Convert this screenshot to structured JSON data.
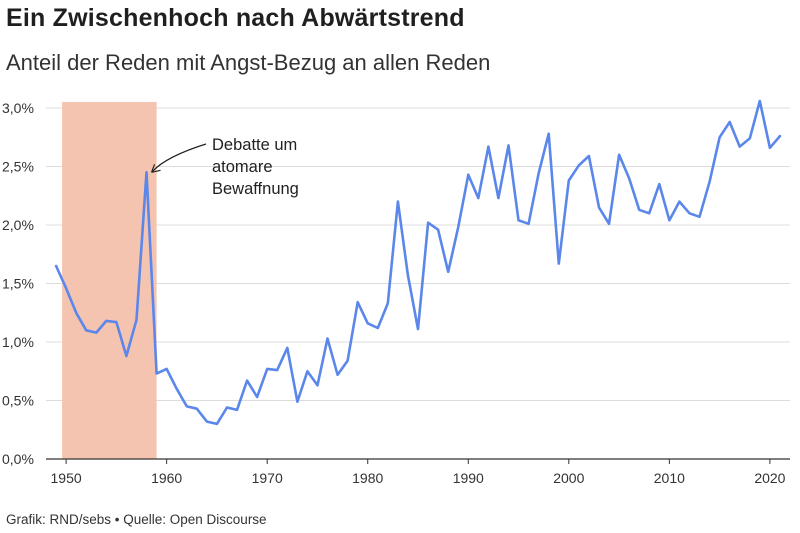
{
  "header": {
    "title": "Ein Zwischenhoch nach Abwärtstrend",
    "subtitle": "Anteil der Reden mit Angst-Bezug an allen Reden"
  },
  "footer": {
    "credit": "Grafik: RND/sebs • Quelle: Open Discourse"
  },
  "colors": {
    "line": "#5b87ea",
    "highlight": "#f4c4b0",
    "grid": "#dcdcdc",
    "axis": "#333333"
  },
  "chart_data": {
    "type": "line",
    "title": "Ein Zwischenhoch nach Abwärtstrend",
    "subtitle": "Anteil der Reden mit Angst-Bezug an allen Reden",
    "xlabel": "",
    "ylabel": "",
    "xlim": [
      1948,
      2022
    ],
    "ylim": [
      0,
      3.0
    ],
    "x_ticks": [
      1950,
      1960,
      1970,
      1980,
      1990,
      2000,
      2010,
      2020
    ],
    "y_ticks": [
      {
        "value": 0,
        "label": "0,0%"
      },
      {
        "value": 0.5,
        "label": "0,5%"
      },
      {
        "value": 1.0,
        "label": "1,0%"
      },
      {
        "value": 1.5,
        "label": "1,5%"
      },
      {
        "value": 2.0,
        "label": "2,0%"
      },
      {
        "value": 2.5,
        "label": "2,5%"
      },
      {
        "value": 3.0,
        "label": "3,0%"
      }
    ],
    "grid": true,
    "highlight_range": [
      1949.6,
      1959.0
    ],
    "annotation": {
      "lines": [
        "Debatte um",
        "atomare",
        "Bewaffnung"
      ],
      "x": 1958,
      "y": 2.45
    },
    "series": [
      {
        "x": [
          1949,
          1950,
          1951,
          1952,
          1953,
          1954,
          1955,
          1956,
          1957,
          1958,
          1959,
          1960,
          1961,
          1962,
          1963,
          1964,
          1965,
          1966,
          1967,
          1968,
          1969,
          1970,
          1971,
          1972,
          1973,
          1974,
          1975,
          1976,
          1977,
          1978,
          1979,
          1980,
          1981,
          1982,
          1983,
          1984,
          1985,
          1986,
          1987,
          1988,
          1989,
          1990,
          1991,
          1992,
          1993,
          1994,
          1995,
          1996,
          1997,
          1998,
          1999,
          2000,
          2001,
          2002,
          2003,
          2004,
          2005,
          2006,
          2007,
          2008,
          2009,
          2010,
          2011,
          2012,
          2013,
          2014,
          2015,
          2016,
          2017,
          2018,
          2019,
          2020,
          2021
        ],
        "values": [
          1.65,
          1.46,
          1.25,
          1.1,
          1.08,
          1.18,
          1.17,
          0.88,
          1.19,
          2.45,
          0.73,
          0.77,
          0.6,
          0.45,
          0.43,
          0.32,
          0.3,
          0.44,
          0.42,
          0.67,
          0.53,
          0.77,
          0.76,
          0.95,
          0.49,
          0.75,
          0.63,
          1.03,
          0.72,
          0.84,
          1.34,
          1.16,
          1.12,
          1.33,
          2.2,
          1.57,
          1.11,
          2.02,
          1.96,
          1.6,
          1.98,
          2.43,
          2.23,
          2.67,
          2.23,
          2.68,
          2.04,
          2.01,
          2.44,
          2.78,
          1.67,
          2.38,
          2.51,
          2.59,
          2.15,
          2.01,
          2.6,
          2.4,
          2.13,
          2.1,
          2.35,
          2.04,
          2.2,
          2.1,
          2.07,
          2.37,
          2.75,
          2.88,
          2.67,
          2.74,
          3.06,
          2.66,
          2.76
        ]
      }
    ]
  }
}
